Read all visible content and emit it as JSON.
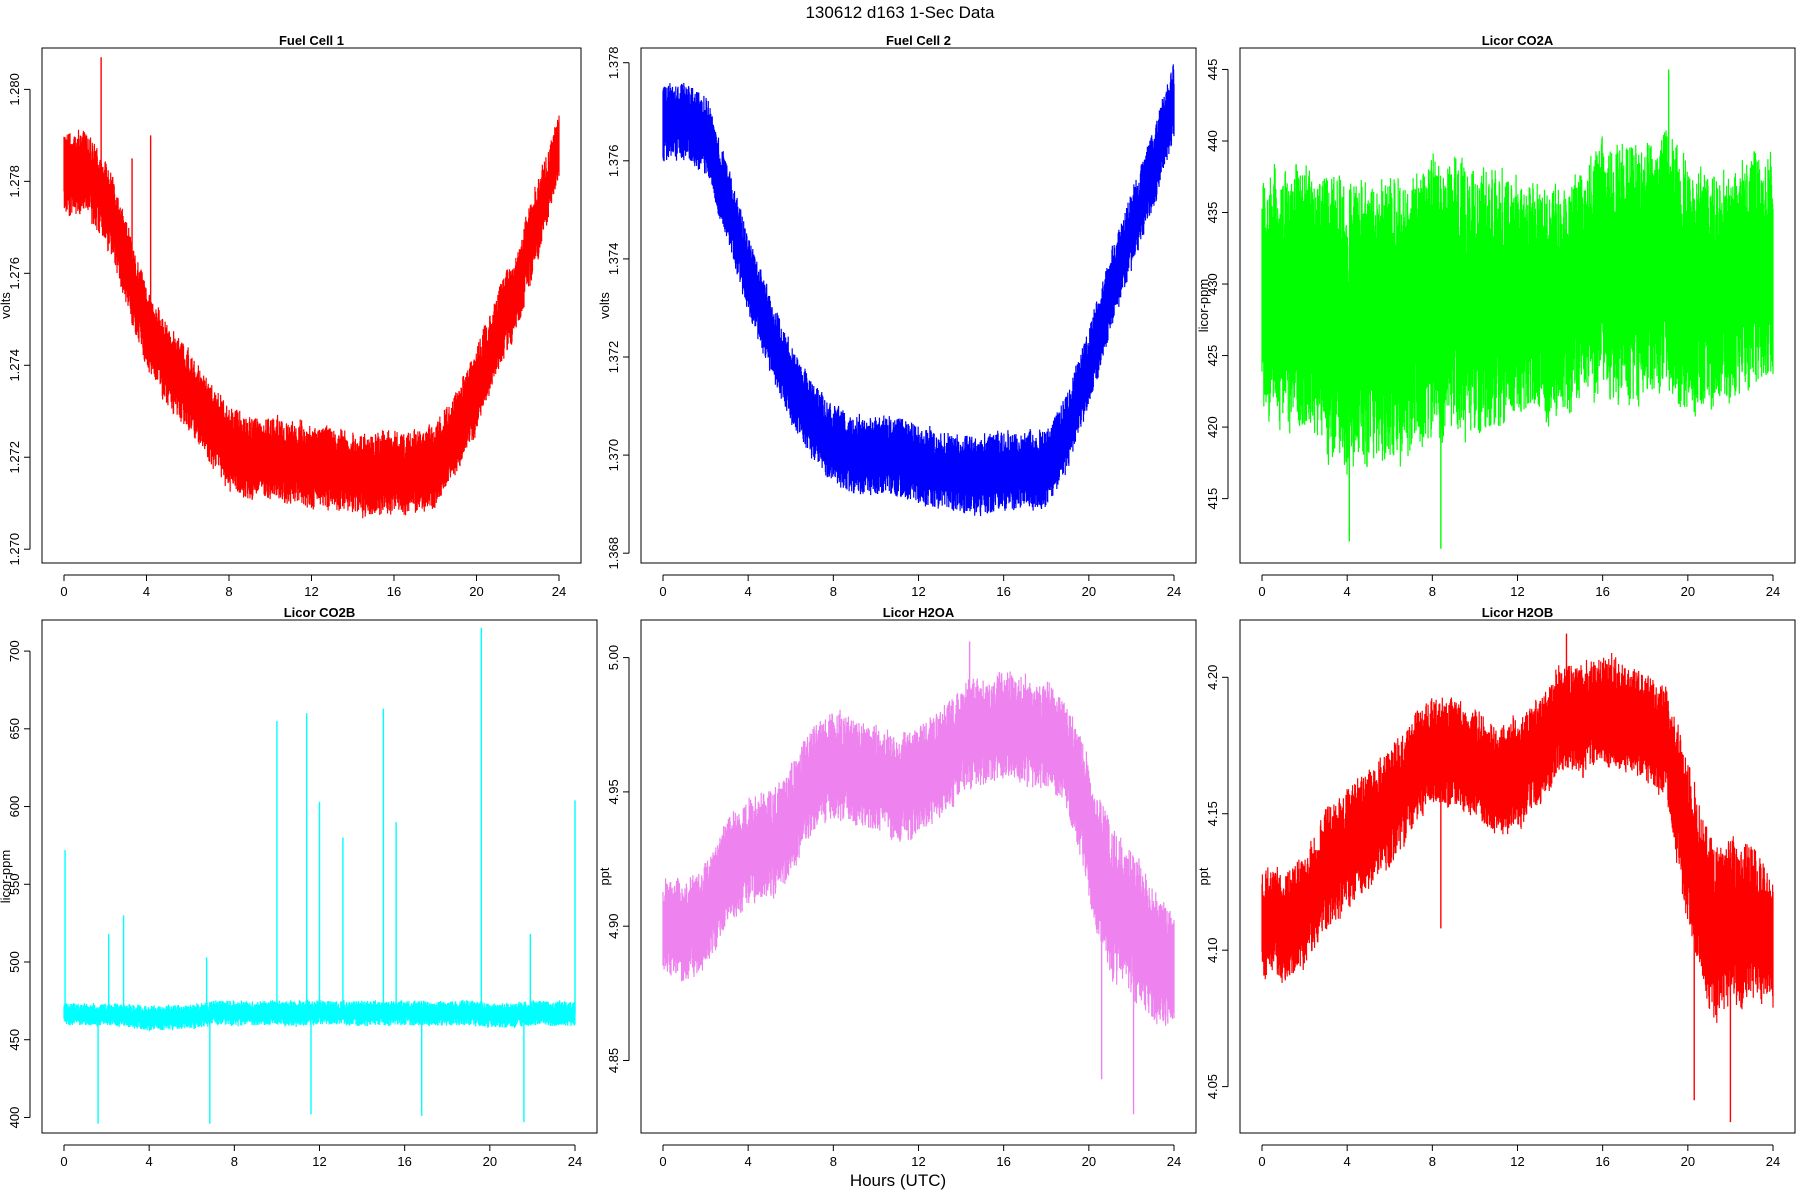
{
  "title": "130612   d163   1-Sec Data",
  "x_axis_title": "Hours (UTC)",
  "chart_data": [
    {
      "type": "line",
      "title": "Fuel Cell 1",
      "xlabel": "",
      "ylabel": "volts",
      "color": "#ff0000",
      "xlim": [
        0,
        24
      ],
      "ylim": [
        1.2697,
        1.2809
      ],
      "xticks": [
        0,
        4,
        8,
        12,
        16,
        20,
        24
      ],
      "yticks": [
        1.27,
        1.272,
        1.274,
        1.276,
        1.278,
        1.28
      ],
      "ytick_labels": [
        "1.270",
        "1.272",
        "1.274",
        "1.276",
        "1.278",
        "1.280"
      ],
      "grid": false,
      "series": [
        {
          "x": [
            0,
            1,
            2,
            3,
            4,
            5,
            6,
            7,
            8,
            9,
            10,
            11,
            12,
            13,
            14,
            15,
            16,
            17,
            18,
            19,
            20,
            21,
            22,
            23,
            24
          ],
          "center": [
            1.2782,
            1.2782,
            1.2776,
            1.2763,
            1.2748,
            1.274,
            1.2735,
            1.2728,
            1.2722,
            1.272,
            1.272,
            1.2719,
            1.2718,
            1.2718,
            1.2716,
            1.2716,
            1.2717,
            1.2717,
            1.2718,
            1.2725,
            1.2735,
            1.2747,
            1.2757,
            1.2772,
            1.2788
          ],
          "half_range": [
            0.0009,
            0.0009,
            0.0009,
            0.0009,
            0.0009,
            0.0009,
            0.0009,
            0.0009,
            0.0009,
            0.0009,
            0.0009,
            0.0009,
            0.0009,
            0.0009,
            0.0009,
            0.0009,
            0.0009,
            0.0009,
            0.0009,
            0.0009,
            0.0009,
            0.0009,
            0.0009,
            0.0009,
            0.0007
          ]
        }
      ],
      "spikes": [
        {
          "x": 1.8,
          "y": 1.2807
        },
        {
          "x": 4.2,
          "y": 1.279
        },
        {
          "x": 3.3,
          "y": 1.2785
        }
      ]
    },
    {
      "type": "line",
      "title": "Fuel Cell 2",
      "xlabel": "",
      "ylabel": "volts",
      "color": "#0000ff",
      "xlim": [
        0,
        24
      ],
      "ylim": [
        1.3678,
        1.3783
      ],
      "xticks": [
        0,
        4,
        8,
        12,
        16,
        20,
        24
      ],
      "yticks": [
        1.368,
        1.37,
        1.372,
        1.374,
        1.376,
        1.378
      ],
      "ytick_labels": [
        "1.368",
        "1.370",
        "1.372",
        "1.374",
        "1.376",
        "1.378"
      ],
      "grid": false,
      "series": [
        {
          "x": [
            0,
            1,
            2,
            3,
            4,
            5,
            6,
            7,
            8,
            9,
            10,
            11,
            12,
            13,
            14,
            15,
            16,
            17,
            18,
            19,
            20,
            21,
            22,
            23,
            24
          ],
          "center": [
            1.3768,
            1.3768,
            1.3765,
            1.3752,
            1.3737,
            1.3725,
            1.3715,
            1.3707,
            1.3702,
            1.37,
            1.37,
            1.37,
            1.3698,
            1.3697,
            1.3696,
            1.3696,
            1.3697,
            1.3697,
            1.3697,
            1.3705,
            1.3718,
            1.3733,
            1.3746,
            1.3758,
            1.3772
          ],
          "half_range": [
            0.0008,
            0.0008,
            0.0008,
            0.0008,
            0.0008,
            0.0008,
            0.0008,
            0.0008,
            0.0008,
            0.0008,
            0.0008,
            0.0008,
            0.0008,
            0.0008,
            0.0008,
            0.0008,
            0.0008,
            0.0008,
            0.0008,
            0.0008,
            0.0008,
            0.0008,
            0.0008,
            0.0008,
            0.0008
          ]
        }
      ],
      "spikes": []
    },
    {
      "type": "line",
      "title": "Licor CO2A",
      "xlabel": "",
      "ylabel": "licor-ppm",
      "color": "#00ff00",
      "xlim": [
        0,
        24
      ],
      "ylim": [
        410.5,
        446.5
      ],
      "xticks": [
        0,
        4,
        8,
        12,
        16,
        20,
        24
      ],
      "yticks": [
        415,
        420,
        425,
        430,
        435,
        440,
        445
      ],
      "ytick_labels": [
        "415",
        "420",
        "425",
        "430",
        "435",
        "440",
        "445"
      ],
      "grid": false,
      "series": [
        {
          "x": [
            0,
            1,
            2,
            3,
            4,
            5,
            6,
            7,
            8,
            9,
            10,
            11,
            12,
            13,
            14,
            15,
            16,
            17,
            18,
            19,
            20,
            21,
            22,
            23,
            24
          ],
          "center": [
            429,
            429,
            429,
            428,
            427,
            427,
            428,
            428,
            429,
            429,
            429,
            429,
            429,
            429,
            429,
            430,
            431,
            431,
            431,
            431,
            430,
            429,
            430,
            431,
            431
          ],
          "half_range": [
            8,
            9,
            9,
            10,
            10,
            10,
            10,
            10,
            10,
            10,
            9,
            9,
            8,
            8,
            8,
            8,
            9,
            9,
            9,
            9,
            9,
            8,
            8,
            8,
            8
          ]
        }
      ],
      "spikes": [
        {
          "x": 4.1,
          "y": 412
        },
        {
          "x": 8.4,
          "y": 411.5
        },
        {
          "x": 19.1,
          "y": 445
        }
      ]
    },
    {
      "type": "line",
      "title": "Licor CO2B",
      "xlabel": "",
      "ylabel": "licor-ppm",
      "color": "#00ffff",
      "xlim": [
        0,
        24
      ],
      "ylim": [
        390,
        720
      ],
      "xticks": [
        0,
        4,
        8,
        12,
        16,
        20,
        24
      ],
      "yticks": [
        400,
        450,
        500,
        550,
        600,
        650,
        700
      ],
      "ytick_labels": [
        "400",
        "450",
        "500",
        "550",
        "600",
        "650",
        "700"
      ],
      "grid": false,
      "series": [
        {
          "x": [
            0,
            1,
            2,
            3,
            4,
            5,
            6,
            7,
            8,
            9,
            10,
            11,
            12,
            13,
            14,
            15,
            16,
            17,
            18,
            19,
            20,
            21,
            22,
            23,
            24
          ],
          "center": [
            466,
            466,
            466,
            465,
            464,
            464,
            465,
            467,
            467,
            467,
            467,
            467,
            467,
            467,
            467,
            467,
            467,
            467,
            467,
            467,
            466,
            466,
            467,
            467,
            467
          ],
          "half_range": [
            7,
            7,
            7,
            8,
            8,
            8,
            8,
            8,
            8,
            8,
            8,
            8,
            8,
            8,
            8,
            8,
            8,
            8,
            8,
            8,
            8,
            8,
            8,
            8,
            8
          ]
        }
      ],
      "spikes": [
        {
          "x": 0.05,
          "y": 572
        },
        {
          "x": 1.6,
          "y": 396
        },
        {
          "x": 2.1,
          "y": 518
        },
        {
          "x": 2.8,
          "y": 530
        },
        {
          "x": 6.7,
          "y": 503
        },
        {
          "x": 6.85,
          "y": 396
        },
        {
          "x": 10.0,
          "y": 655
        },
        {
          "x": 11.4,
          "y": 660
        },
        {
          "x": 11.6,
          "y": 402
        },
        {
          "x": 12.0,
          "y": 603
        },
        {
          "x": 13.1,
          "y": 580
        },
        {
          "x": 15.0,
          "y": 663
        },
        {
          "x": 15.6,
          "y": 590
        },
        {
          "x": 16.8,
          "y": 401
        },
        {
          "x": 19.6,
          "y": 715
        },
        {
          "x": 21.6,
          "y": 397
        },
        {
          "x": 21.9,
          "y": 518
        },
        {
          "x": 24.0,
          "y": 604
        }
      ]
    },
    {
      "type": "line",
      "title": "Licor H2OA",
      "xlabel": "",
      "ylabel": "ppt",
      "color": "#ee82ee",
      "xlim": [
        0,
        24
      ],
      "ylim": [
        4.823,
        5.014
      ],
      "xticks": [
        0,
        4,
        8,
        12,
        16,
        20,
        24
      ],
      "yticks": [
        4.85,
        4.9,
        4.95,
        5.0
      ],
      "ytick_labels": [
        "4.85",
        "4.90",
        "4.95",
        "5.00"
      ],
      "grid": false,
      "series": [
        {
          "x": [
            0,
            1,
            2,
            3,
            4,
            5,
            6,
            7,
            8,
            9,
            10,
            11,
            12,
            13,
            14,
            15,
            16,
            17,
            18,
            19,
            20,
            21,
            22,
            23,
            24
          ],
          "center": [
            4.9,
            4.898,
            4.905,
            4.92,
            4.928,
            4.93,
            4.94,
            4.955,
            4.96,
            4.958,
            4.955,
            4.95,
            4.955,
            4.96,
            4.97,
            4.972,
            4.975,
            4.972,
            4.97,
            4.965,
            4.935,
            4.91,
            4.9,
            4.89,
            4.885
          ],
          "half_range": [
            0.018,
            0.018,
            0.02,
            0.02,
            0.02,
            0.02,
            0.02,
            0.02,
            0.02,
            0.02,
            0.02,
            0.02,
            0.02,
            0.02,
            0.02,
            0.02,
            0.02,
            0.02,
            0.02,
            0.02,
            0.025,
            0.028,
            0.028,
            0.025,
            0.022
          ]
        }
      ],
      "spikes": [
        {
          "x": 20.6,
          "y": 4.843
        },
        {
          "x": 22.1,
          "y": 4.83
        },
        {
          "x": 14.4,
          "y": 5.006
        }
      ]
    },
    {
      "type": "line",
      "title": "Licor H2OB",
      "xlabel": "",
      "ylabel": "ppt",
      "color": "#ff0000",
      "xlim": [
        0,
        24
      ],
      "ylim": [
        4.033,
        4.221
      ],
      "xticks": [
        0,
        4,
        8,
        12,
        16,
        20,
        24
      ],
      "yticks": [
        4.05,
        4.1,
        4.15,
        4.2
      ],
      "ytick_labels": [
        "4.05",
        "4.10",
        "4.15",
        "4.20"
      ],
      "grid": false,
      "series": [
        {
          "x": [
            0,
            1,
            2,
            3,
            4,
            5,
            6,
            7,
            8,
            9,
            10,
            11,
            12,
            13,
            14,
            15,
            16,
            17,
            18,
            19,
            20,
            21,
            22,
            23,
            24
          ],
          "center": [
            4.11,
            4.108,
            4.115,
            4.13,
            4.138,
            4.145,
            4.152,
            4.165,
            4.175,
            4.172,
            4.168,
            4.162,
            4.165,
            4.172,
            4.185,
            4.185,
            4.188,
            4.185,
            4.182,
            4.175,
            4.14,
            4.11,
            4.108,
            4.112,
            4.1
          ],
          "half_range": [
            0.02,
            0.02,
            0.02,
            0.022,
            0.022,
            0.022,
            0.022,
            0.02,
            0.02,
            0.02,
            0.02,
            0.02,
            0.02,
            0.02,
            0.02,
            0.02,
            0.02,
            0.02,
            0.02,
            0.02,
            0.03,
            0.032,
            0.032,
            0.028,
            0.024
          ]
        }
      ],
      "spikes": [
        {
          "x": 20.3,
          "y": 4.045
        },
        {
          "x": 22.0,
          "y": 4.037
        },
        {
          "x": 14.3,
          "y": 4.216
        },
        {
          "x": 8.4,
          "y": 4.108
        }
      ]
    }
  ]
}
